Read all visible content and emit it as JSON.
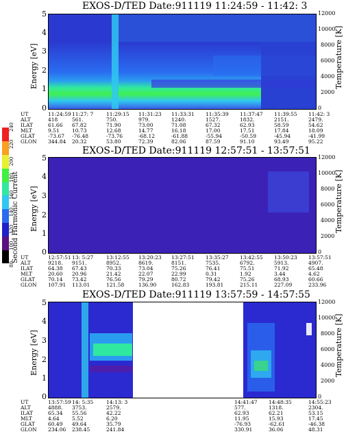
{
  "colorbar": {
    "label": "Second Harmonic Current",
    "ticks": [
      "80",
      "100",
      "120",
      "140",
      "160",
      "180",
      "200",
      "220",
      "240"
    ],
    "colors": [
      "#000000",
      "#5a0f80",
      "#2020c8",
      "#2a6cf0",
      "#30c8f0",
      "#30e8a0",
      "#40f040",
      "#e8f030",
      "#f8a020",
      "#f02020"
    ]
  },
  "panels": [
    {
      "title": "EXOS-D/TED  Date:911119  11:24:59 - 11:42: 3",
      "ylabel": "Energy [eV]",
      "ylabel2": "Temperature [K]",
      "yticks": [
        "0",
        "1",
        "2",
        "3",
        "4",
        "5"
      ],
      "yticks2": [
        "0",
        "2000",
        "4000",
        "6000",
        "8000",
        "10000",
        "12000"
      ],
      "ephem_labels": [
        "UT",
        "ALT",
        "ILAT",
        "MLT",
        "GLAT",
        "GLON"
      ],
      "ephem_cols": [
        [
          "11:24:59",
          "418",
          "61.66",
          "9.51",
          "-73.67",
          "344.84"
        ],
        [
          "11:27: 7",
          "561.",
          "67.82",
          "10.73",
          "-76.48",
          "20.32"
        ],
        [
          "11:29:15",
          "750.",
          "71.90",
          "12.68",
          "-73.76",
          "53.80"
        ],
        [
          "11:31:23",
          "979.",
          "73.00",
          "14.77",
          "-68.12",
          "72.39"
        ],
        [
          "11:33:31",
          "1240.",
          "71.08",
          "16.18",
          "-61.88",
          "82.06"
        ],
        [
          "11:35:39",
          "1527.",
          "67.32",
          "17.00",
          "-55.94",
          "87.59"
        ],
        [
          "11:37:47",
          "1832.",
          "62.93",
          "17.51",
          "-50.59",
          "91.10"
        ],
        [
          "11:39:55",
          "2151.",
          "58.59",
          "17.84",
          "-45.94",
          "93.49"
        ],
        [
          "11:42: 3",
          "2479.",
          "54.62",
          "18.09",
          "-41.99",
          "95.22"
        ]
      ]
    },
    {
      "title": "EXOS-D/TED  Date:911119  12:57:51 - 13:57:51",
      "ylabel": "Energy [eV]",
      "ylabel2": "Temperature [K]",
      "yticks": [
        "0",
        "1",
        "2",
        "3",
        "4",
        "5"
      ],
      "yticks2": [
        "0",
        "2000",
        "4000",
        "6000",
        "8000",
        "10000",
        "12000"
      ],
      "ephem_labels": [
        "UT",
        "ALT",
        "ILAT",
        "MLT",
        "GLAT",
        "GLON"
      ],
      "ephem_cols": [
        [
          "12:57:51",
          "9218.",
          "64.38",
          "20.60",
          "70.14",
          "107.91"
        ],
        [
          "13: 5:27",
          "9151.",
          "67.43",
          "20.96",
          "73.42",
          "113.01"
        ],
        [
          "13:12:55",
          "8952.",
          "70.33",
          "21.42",
          "76.56",
          "121.58"
        ],
        [
          "13:20:23",
          "8619.",
          "73.04",
          "22.07",
          "79.29",
          "136.90"
        ],
        [
          "13:27:51",
          "8151.",
          "75.26",
          "22.99",
          "80.72",
          "162.83"
        ],
        [
          "13:35:27",
          "7535.",
          "76.41",
          "0.31",
          "79.42",
          "193.81"
        ],
        [
          "13:42:55",
          "6792.",
          "75.51",
          "1.92",
          "75.26",
          "215.11"
        ],
        [
          "13:50:23",
          "5913.",
          "71.92",
          "3.44",
          "68.93",
          "227.09"
        ],
        [
          "13:57:51",
          "4907.",
          "65.48",
          "4.62",
          "60.66",
          "233.96"
        ]
      ]
    },
    {
      "title": "EXOS-D/TED  Date:911119  13:57:59 - 14:57:55",
      "ylabel": "Energy [eV]",
      "ylabel2": "Temperature [K]",
      "yticks": [
        "0",
        "1",
        "2",
        "3",
        "4",
        "5"
      ],
      "yticks2": [
        "0",
        "2000",
        "4000",
        "6000",
        "8000",
        "10000",
        "12000"
      ],
      "ephem_labels": [
        "UT",
        "ALT",
        "ILAT",
        "MLT",
        "GLAT",
        "GLON"
      ],
      "ephem_cols": [
        [
          "13:57:59",
          "4888.",
          "65.34",
          "4.64",
          "60.49",
          "234.06"
        ],
        [
          "14: 5:35",
          "3753.",
          "55.56",
          "5.52",
          "49.64",
          "238.45"
        ],
        [
          "14:13: 3",
          "2579.",
          "42.22",
          "6.20",
          "35.79",
          "241.84"
        ],
        [
          "14:41:47",
          "577.",
          "62.93",
          "11.95",
          "-76.93",
          "330.91"
        ],
        [
          "14:48:35",
          "1318.",
          "62.21",
          "15.93",
          "-62.61",
          "36.06"
        ],
        [
          "14:55:23",
          "2304.",
          "53.15",
          "17.45",
          "-46.38",
          "48.31"
        ]
      ]
    }
  ],
  "chart_data": [
    {
      "type": "heatmap",
      "title": "EXOS-D/TED  Date:911119  11:24:59 - 11:42: 3",
      "xlabel": "UT",
      "ylabel": "Energy [eV]",
      "ylabel2": "Temperature [K]",
      "ylim": [
        0,
        5
      ],
      "ylim2": [
        0,
        12000
      ],
      "x": [
        "11:24:59",
        "11:27: 7",
        "11:29:15",
        "11:31:23",
        "11:33:31",
        "11:35:39",
        "11:37:47",
        "11:39:55",
        "11:42: 3"
      ],
      "colorbar_label": "Second Harmonic Current",
      "colorbar_range": [
        80,
        240
      ]
    },
    {
      "type": "heatmap",
      "title": "EXOS-D/TED  Date:911119  12:57:51 - 13:57:51",
      "xlabel": "UT",
      "ylabel": "Energy [eV]",
      "ylabel2": "Temperature [K]",
      "ylim": [
        0,
        5
      ],
      "ylim2": [
        0,
        12000
      ],
      "x": [
        "12:57:51",
        "13: 5:27",
        "13:12:55",
        "13:20:23",
        "13:27:51",
        "13:35:27",
        "13:42:55",
        "13:50:23",
        "13:57:51"
      ],
      "colorbar_label": "Second Harmonic Current",
      "colorbar_range": [
        80,
        240
      ]
    },
    {
      "type": "heatmap",
      "title": "EXOS-D/TED  Date:911119  13:57:59 - 14:57:55",
      "xlabel": "UT",
      "ylabel": "Energy [eV]",
      "ylabel2": "Temperature [K]",
      "ylim": [
        0,
        5
      ],
      "ylim2": [
        0,
        12000
      ],
      "x": [
        "13:57:59",
        "14: 5:35",
        "14:13: 3",
        "14:41:47",
        "14:48:35",
        "14:55:23"
      ],
      "colorbar_label": "Second Harmonic Current",
      "colorbar_range": [
        80,
        240
      ]
    }
  ]
}
